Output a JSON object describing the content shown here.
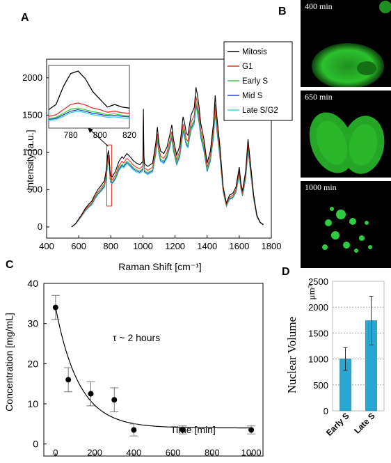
{
  "panels": {
    "A": {
      "letter": "A"
    },
    "B": {
      "letter": "B",
      "images": [
        {
          "label": "400 min"
        },
        {
          "label": "650 min"
        },
        {
          "label": "1000 min"
        }
      ]
    },
    "C": {
      "letter": "C"
    },
    "D": {
      "letter": "D"
    }
  },
  "colors": {
    "mitosis": "#000000",
    "g1": "#e8312a",
    "early_s": "#3fd13f",
    "mid_s": "#2a3fd6",
    "late_s_g2": "#35d3e0",
    "fluorescence": "#2ecc40",
    "bar": "#2aa7d0"
  },
  "chart_data": [
    {
      "id": "A",
      "type": "line",
      "xlabel": "Raman Shift  [cm⁻¹]",
      "ylabel": "Intensity  [a.u.]",
      "xlim": [
        400,
        1800
      ],
      "ylim": [
        -150,
        2250
      ],
      "x_ticks": [
        400,
        600,
        800,
        1000,
        1200,
        1400,
        1600,
        1800
      ],
      "y_ticks": [
        0,
        500,
        1000,
        1500,
        2000
      ],
      "legend": [
        "Mitosis",
        "G1",
        "Early S",
        "Mid S",
        "Late S/G2"
      ],
      "highlight_box_x": [
        775,
        805
      ],
      "base_spectrum": {
        "x": [
          555,
          580,
          600,
          620,
          640,
          660,
          680,
          700,
          720,
          740,
          760,
          770,
          780,
          785,
          790,
          795,
          800,
          810,
          830,
          850,
          870,
          880,
          900,
          920,
          940,
          960,
          980,
          1000,
          1003,
          1006,
          1010,
          1030,
          1060,
          1080,
          1090,
          1100,
          1110,
          1130,
          1150,
          1170,
          1180,
          1190,
          1200,
          1210,
          1230,
          1240,
          1250,
          1260,
          1270,
          1280,
          1300,
          1320,
          1330,
          1340,
          1350,
          1360,
          1380,
          1400,
          1420,
          1440,
          1450,
          1460,
          1480,
          1500,
          1520,
          1540,
          1560,
          1580,
          1600,
          1610,
          1620,
          1640,
          1655,
          1670,
          1690,
          1710,
          1730,
          1750
        ],
        "y": [
          0,
          40,
          100,
          160,
          230,
          280,
          320,
          400,
          470,
          520,
          580,
          700,
          900,
          960,
          880,
          700,
          640,
          630,
          700,
          820,
          880,
          860,
          920,
          880,
          830,
          800,
          780,
          820,
          1480,
          900,
          790,
          760,
          800,
          1050,
          1250,
          1050,
          950,
          920,
          1000,
          1180,
          1280,
          1100,
          1000,
          900,
          1020,
          1200,
          1380,
          1300,
          1180,
          1150,
          1400,
          1500,
          1750,
          1650,
          1500,
          1300,
          1100,
          800,
          950,
          1300,
          1650,
          1400,
          1000,
          500,
          300,
          400,
          420,
          500,
          750,
          550,
          450,
          700,
          1100,
          800,
          400,
          150,
          60,
          30
        ]
      },
      "series": [
        {
          "name": "Mitosis",
          "scale": 1.07
        },
        {
          "name": "G1",
          "scale": 1.0
        },
        {
          "name": "Early S",
          "scale": 0.96
        },
        {
          "name": "Mid S",
          "scale": 0.94
        },
        {
          "name": "Late S/G2",
          "scale": 0.92
        }
      ],
      "inset": {
        "xlim": [
          765,
          820
        ],
        "x_ticks": [
          780,
          800,
          820
        ],
        "x": [
          765,
          770,
          775,
          780,
          785,
          790,
          795,
          800,
          805,
          810,
          815,
          820
        ],
        "series": [
          {
            "name": "Mitosis",
            "values": [
              0.25,
              0.35,
              0.7,
              0.95,
              1.0,
              0.85,
              0.6,
              0.45,
              0.3,
              0.35,
              0.3,
              0.28
            ]
          },
          {
            "name": "G1",
            "values": [
              0.12,
              0.15,
              0.25,
              0.35,
              0.38,
              0.34,
              0.28,
              0.25,
              0.2,
              0.22,
              0.19,
              0.18
            ]
          },
          {
            "name": "Early S",
            "values": [
              0.08,
              0.1,
              0.18,
              0.26,
              0.28,
              0.25,
              0.21,
              0.19,
              0.15,
              0.17,
              0.14,
              0.13
            ]
          },
          {
            "name": "Mid S",
            "values": [
              0.06,
              0.08,
              0.15,
              0.22,
              0.25,
              0.22,
              0.18,
              0.16,
              0.13,
              0.14,
              0.12,
              0.11
            ]
          },
          {
            "name": "Late S/G2",
            "values": [
              0.04,
              0.06,
              0.12,
              0.19,
              0.22,
              0.19,
              0.15,
              0.13,
              0.1,
              0.11,
              0.09,
              0.08
            ]
          }
        ]
      }
    },
    {
      "id": "C",
      "type": "scatter",
      "xlabel": "Time  [min]",
      "ylabel": "Concentration [mg/mL]",
      "annotation": "τ ~ 2 hours",
      "xlim": [
        -60,
        1060
      ],
      "ylim": [
        -3,
        40
      ],
      "x_ticks": [
        0,
        200,
        400,
        600,
        800,
        1000
      ],
      "y_ticks": [
        0,
        10,
        20,
        30,
        40
      ],
      "points": [
        {
          "x": 0,
          "y": 34,
          "err": 3
        },
        {
          "x": 65,
          "y": 16,
          "err": 3
        },
        {
          "x": 180,
          "y": 12.5,
          "err": 3
        },
        {
          "x": 300,
          "y": 11,
          "err": 3
        },
        {
          "x": 400,
          "y": 3.5,
          "err": 1.5
        },
        {
          "x": 650,
          "y": 3.5,
          "err": 1
        },
        {
          "x": 1000,
          "y": 3.5,
          "err": 1
        }
      ],
      "fit": {
        "model": "exponential",
        "A": 30,
        "tau": 120,
        "offset": 4
      }
    },
    {
      "id": "D",
      "type": "bar",
      "ylabel": "Nuclear Volume",
      "unit": "μm³",
      "categories": [
        "Early S",
        "Late S"
      ],
      "values": [
        1000,
        1740
      ],
      "errors": [
        220,
        470
      ],
      "ylim": [
        0,
        2500
      ],
      "y_ticks": [
        0,
        500,
        1000,
        1500,
        2000,
        2500
      ],
      "grid": true
    }
  ]
}
